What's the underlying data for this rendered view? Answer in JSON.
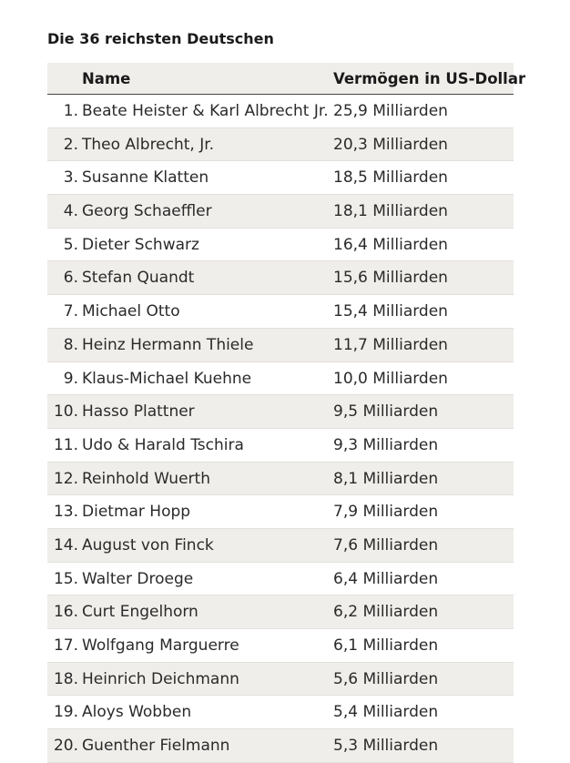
{
  "title": "Die 36 reichsten Deutschen",
  "table": {
    "headers": {
      "rank": "",
      "name": "Name",
      "value": "Vermögen in US-Dollar"
    },
    "rows": [
      {
        "rank": "1.",
        "name": "Beate Heister & Karl Albrecht Jr.",
        "value": "25,9 Milliarden"
      },
      {
        "rank": "2.",
        "name": "Theo Albrecht, Jr.",
        "value": "20,3 Milliarden"
      },
      {
        "rank": "3.",
        "name": "Susanne Klatten",
        "value": "18,5 Milliarden"
      },
      {
        "rank": "4.",
        "name": "Georg Schaeffler",
        "value": "18,1 Milliarden"
      },
      {
        "rank": "5.",
        "name": "Dieter Schwarz",
        "value": "16,4 Milliarden"
      },
      {
        "rank": "6.",
        "name": "Stefan Quandt",
        "value": "15,6 Milliarden"
      },
      {
        "rank": "7.",
        "name": "Michael Otto",
        "value": "15,4 Milliarden"
      },
      {
        "rank": "8.",
        "name": "Heinz Hermann Thiele",
        "value": "11,7 Milliarden"
      },
      {
        "rank": "9.",
        "name": "Klaus-Michael Kuehne",
        "value": "10,0 Milliarden"
      },
      {
        "rank": "10.",
        "name": "Hasso Plattner",
        "value": "9,5 Milliarden"
      },
      {
        "rank": "11.",
        "name": "Udo & Harald Tschira",
        "value": "9,3 Milliarden"
      },
      {
        "rank": "12.",
        "name": "Reinhold Wuerth",
        "value": "8,1 Milliarden"
      },
      {
        "rank": "13.",
        "name": "Dietmar Hopp",
        "value": "7,9 Milliarden"
      },
      {
        "rank": "14.",
        "name": "August von Finck",
        "value": "7,6 Milliarden"
      },
      {
        "rank": "15.",
        "name": "Walter Droege",
        "value": "6,4 Milliarden"
      },
      {
        "rank": "16.",
        "name": "Curt Engelhorn",
        "value": "6,2 Milliarden"
      },
      {
        "rank": "17.",
        "name": "Wolfgang Marguerre",
        "value": "6,1 Milliarden"
      },
      {
        "rank": "18.",
        "name": "Heinrich Deichmann",
        "value": "5,6 Milliarden"
      },
      {
        "rank": "19.",
        "name": "Aloys Wobben",
        "value": "5,4 Milliarden"
      },
      {
        "rank": "20.",
        "name": "Guenther Fielmann",
        "value": "5,3 Milliarden"
      }
    ]
  }
}
